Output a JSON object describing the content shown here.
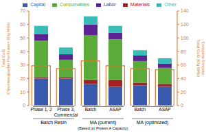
{
  "chart_data": {
    "type": "bar",
    "stacked": true,
    "grid": false,
    "legend": "top",
    "categories": [
      "Phase 1, 2",
      "Phase 3,\nCommercial",
      "Batch",
      "ASAP",
      "Batch",
      "ASAP"
    ],
    "groups": [
      {
        "label": "Batch Resin",
        "categories": [
          "Phase 1, 2",
          "Phase 3,\nCommercial"
        ]
      },
      {
        "label": "MA (current)",
        "subtitle": "(Based on Protein A Capacity)",
        "categories": [
          "Batch",
          "ASAP"
        ]
      },
      {
        "label": "MA (optimized)",
        "categories": [
          "Batch",
          "ASAP"
        ]
      }
    ],
    "ylabel": "Total CoG\nChromatographic Purification (€/g MAb)",
    "y2label": "Complete Process\nTotal CoG (€/g MAb)",
    "ylim": [
      0,
      70
    ],
    "yticks": [
      0,
      10,
      20,
      30,
      40,
      50,
      60,
      70
    ],
    "y2lim": [
      0,
      140
    ],
    "y2ticks": [
      0,
      20,
      40,
      60,
      80,
      100,
      120,
      140
    ],
    "series": [
      {
        "name": "Capital",
        "color": "#3a5aad",
        "values": [
          20,
          20,
          16,
          14,
          15,
          14
        ]
      },
      {
        "name": "Materials",
        "color": "#a52020",
        "values": [
          1,
          1,
          3,
          5,
          2,
          2
        ]
      },
      {
        "name": "Consumables",
        "color": "#5aab3a",
        "values": [
          27,
          13,
          33,
          30,
          16,
          12
        ]
      },
      {
        "name": "Labor",
        "color": "#5a2590",
        "values": [
          5,
          4,
          8,
          5,
          4,
          3
        ]
      },
      {
        "name": "Other",
        "color": "#3abcb8",
        "values": [
          6,
          5,
          6,
          5,
          4,
          4
        ]
      },
      {
        "type": "bar",
        "axis": "y2",
        "color": "#e07828",
        "values": [
          59,
          55,
          66,
          59,
          55,
          53
        ]
      }
    ]
  }
}
